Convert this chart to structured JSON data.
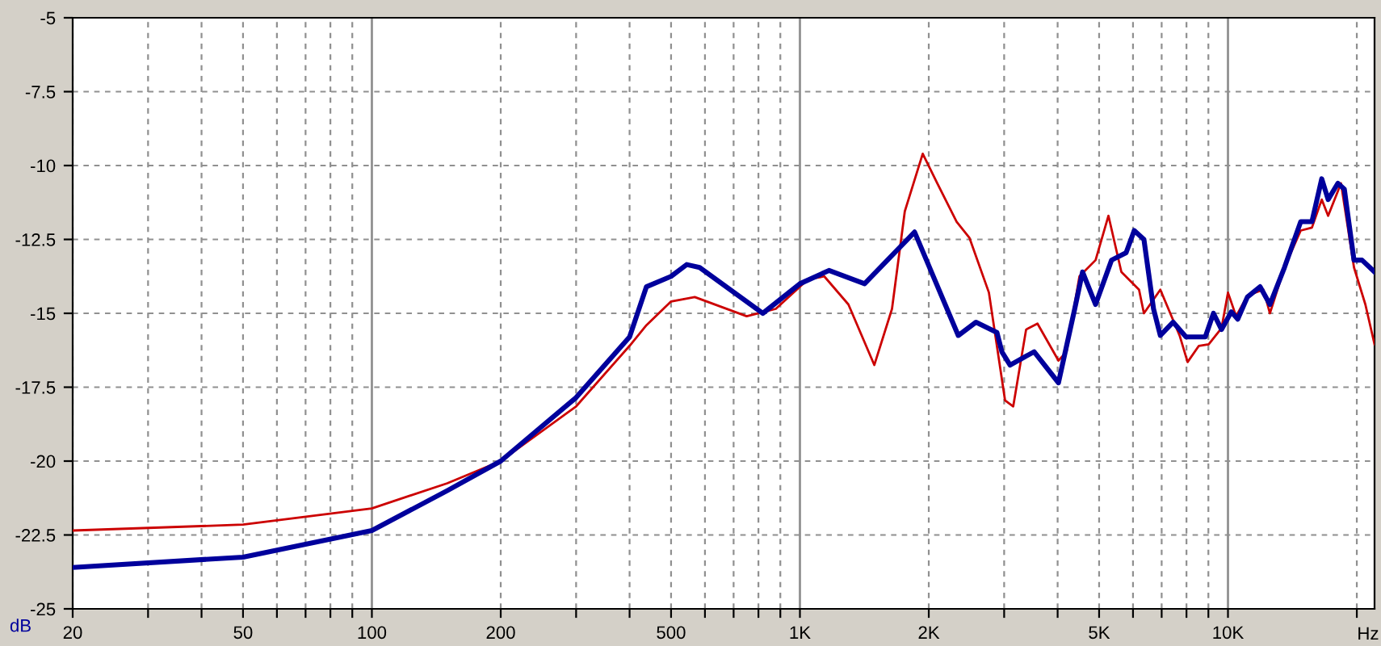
{
  "chart_data": {
    "type": "line",
    "xlabel": "Hz",
    "ylabel": "dB",
    "log": "x",
    "grid": true,
    "marker": "none",
    "line_style": "solid",
    "xlim": [
      20,
      22000
    ],
    "ylim": [
      -25,
      -5
    ],
    "xticks": [
      20,
      {
        "value": 30,
        "label": null
      },
      {
        "value": 40,
        "label": null
      },
      50,
      {
        "value": 60,
        "label": null
      },
      {
        "value": 70,
        "label": null
      },
      {
        "value": 80,
        "label": null
      },
      {
        "value": 90,
        "label": null
      },
      100,
      200,
      {
        "value": 300,
        "label": null
      },
      {
        "value": 400,
        "label": null
      },
      500,
      {
        "value": 600,
        "label": null
      },
      {
        "value": 700,
        "label": null
      },
      {
        "value": 800,
        "label": null
      },
      {
        "value": 900,
        "label": null
      },
      {
        "value": 1000,
        "label": "1K"
      },
      {
        "value": 2000,
        "label": "2K"
      },
      {
        "value": 3000,
        "label": null
      },
      {
        "value": 4000,
        "label": null
      },
      {
        "value": 5000,
        "label": "5K"
      },
      {
        "value": 6000,
        "label": null
      },
      {
        "value": 7000,
        "label": null
      },
      {
        "value": 8000,
        "label": null
      },
      {
        "value": 9000,
        "label": null
      },
      {
        "value": 10000,
        "label": "10K"
      },
      {
        "value": 20000,
        "label": null
      }
    ],
    "yticks": [
      -25,
      -22.5,
      -20,
      -17.5,
      -15,
      -12.5,
      -10,
      -7.5,
      -5
    ],
    "series": [
      {
        "color": "#cc0000",
        "x": [
          20,
          50,
          100,
          150,
          200,
          300,
          400,
          438,
          500,
          568,
          751,
          878,
          1044,
          1140,
          1298,
          1492,
          1641,
          1758,
          1936,
          2093,
          2323,
          2490,
          2764,
          3015,
          3150,
          3376,
          3589,
          4018,
          4197,
          4498,
          4906,
          5258,
          5636,
          6198,
          6363,
          6950,
          7709,
          8048,
          8551,
          9016,
          9660,
          10000,
          10447,
          11100,
          12100,
          12530,
          13550,
          14790,
          15710,
          16560,
          17140,
          18370,
          19700,
          20940,
          22000
        ],
        "values": [
          -22.35,
          -22.15,
          -21.6,
          -20.75,
          -20,
          -18.15,
          -16.1,
          -15.4,
          -14.6,
          -14.45,
          -15.1,
          -14.85,
          -13.85,
          -13.75,
          -14.7,
          -16.75,
          -14.85,
          -11.55,
          -9.6,
          -10.6,
          -11.9,
          -12.45,
          -14.3,
          -17.95,
          -18.15,
          -15.55,
          -15.35,
          -16.6,
          -16.3,
          -13.75,
          -13.2,
          -11.7,
          -13.6,
          -14.2,
          -15.0,
          -14.2,
          -15.75,
          -16.65,
          -16.1,
          -16.05,
          -15.5,
          -14.3,
          -15.1,
          -14.4,
          -14.2,
          -15.0,
          -13.45,
          -12.2,
          -12.1,
          -11.15,
          -11.7,
          -10.6,
          -13.45,
          -14.7,
          -16.05
        ]
      },
      {
        "color": "#00009c",
        "x": [
          20,
          50,
          100,
          150,
          200,
          300,
          400,
          438,
          500,
          544,
          583,
          819,
          1000,
          1169,
          1416,
          1853,
          2344,
          2578,
          2886,
          2963,
          3097,
          3525,
          4018,
          4385,
          4573,
          4906,
          5346,
          5781,
          6040,
          6363,
          6701,
          6950,
          7447,
          7980,
          8851,
          9249,
          9660,
          10180,
          10540,
          11100,
          11885,
          12530,
          13550,
          14790,
          15710,
          16560,
          17140,
          18060,
          18700,
          19700,
          20570,
          22000
        ],
        "values": [
          -23.6,
          -23.25,
          -22.35,
          -21.0,
          -20,
          -17.85,
          -15.8,
          -14.1,
          -13.75,
          -13.35,
          -13.45,
          -15.0,
          -14.0,
          -13.55,
          -14.0,
          -12.25,
          -15.75,
          -15.3,
          -15.65,
          -16.3,
          -16.75,
          -16.3,
          -17.35,
          -14.85,
          -13.6,
          -14.7,
          -13.2,
          -12.95,
          -12.2,
          -12.5,
          -14.85,
          -15.75,
          -15.3,
          -15.8,
          -15.8,
          -15.0,
          -15.55,
          -14.95,
          -15.2,
          -14.45,
          -14.1,
          -14.7,
          -13.45,
          -11.9,
          -11.9,
          -10.45,
          -11.15,
          -10.6,
          -10.8,
          -13.2,
          -13.2,
          -13.6
        ]
      }
    ]
  }
}
